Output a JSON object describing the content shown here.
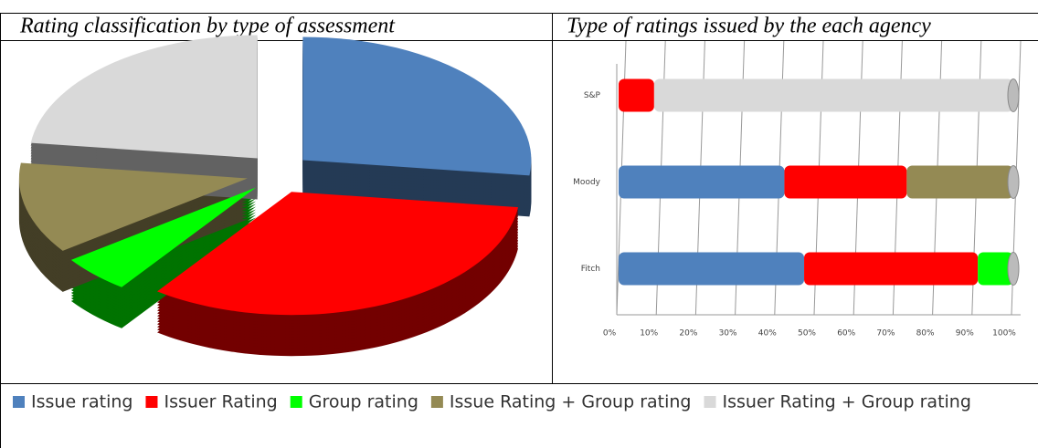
{
  "chart_data": [
    {
      "type": "pie",
      "title": "Rating classification by type of assessment",
      "values": [
        27,
        33,
        5,
        12,
        23
      ],
      "colors": [
        "#4f81bd",
        "#ff0000",
        "#00ff00",
        "#948a54",
        "#d9d9d9"
      ]
    },
    {
      "type": "bar",
      "orientation": "horizontal",
      "stacked": true,
      "title": "Type of ratings issued by the each agency",
      "categories": [
        "S&P",
        "Moody",
        "Fitch"
      ],
      "series": [
        {
          "name": "Issue rating",
          "color": "#4f81bd",
          "values": [
            0,
            42,
            47
          ]
        },
        {
          "name": "Issuer Rating",
          "color": "#ff0000",
          "values": [
            9,
            31,
            44
          ]
        },
        {
          "name": "Group rating",
          "color": "#00ff00",
          "values": [
            0,
            0,
            9
          ]
        },
        {
          "name": "Issue Rating + Group rating",
          "color": "#948a54",
          "values": [
            0,
            27,
            0
          ]
        },
        {
          "name": "Issuer Rating + Group rating",
          "color": "#d9d9d9",
          "values": [
            91,
            0,
            0
          ]
        }
      ],
      "xlim": [
        0,
        100
      ],
      "xticks": [
        {
          "value": 0,
          "label": "0%"
        },
        {
          "value": 10,
          "label": "10%"
        },
        {
          "value": 20,
          "label": "20%"
        },
        {
          "value": 30,
          "label": "30%"
        },
        {
          "value": 40,
          "label": "40%"
        },
        {
          "value": 50,
          "label": "50%"
        },
        {
          "value": 60,
          "label": "60%"
        },
        {
          "value": 70,
          "label": "70%"
        },
        {
          "value": 80,
          "label": "80%"
        },
        {
          "value": 90,
          "label": "90%"
        },
        {
          "value": 100,
          "label": "100%"
        }
      ],
      "grid": true
    }
  ]
}
